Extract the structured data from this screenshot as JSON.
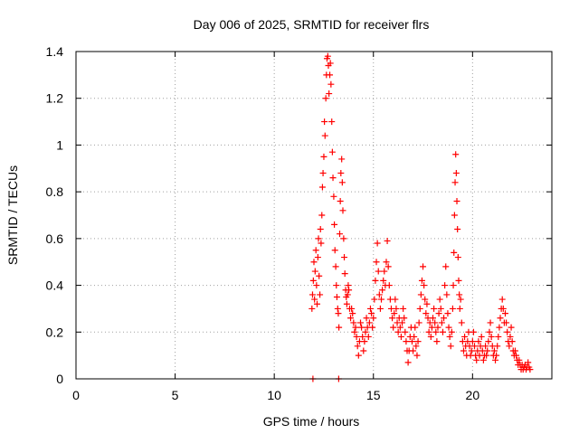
{
  "chart_data": {
    "type": "scatter",
    "title": "Day 006 of 2025, SRMTID for receiver flrs",
    "xlabel": "GPS time / hours",
    "ylabel": "SRMTID / TECUs",
    "xlim": [
      0,
      24
    ],
    "ylim": [
      0,
      1.4
    ],
    "xticks": [
      0,
      5,
      10,
      15,
      20
    ],
    "xtick_labels": [
      "0",
      "5",
      "10",
      "15",
      "20"
    ],
    "yticks": [
      0,
      0.2,
      0.4,
      0.6,
      0.8,
      1.0,
      1.2,
      1.4
    ],
    "ytick_labels": [
      "0",
      "0.2",
      "0.4",
      "0.6",
      "0.8",
      "1",
      "1.2",
      "1.4"
    ],
    "grid": true,
    "marker": "plus",
    "series": [
      {
        "name": "SRMTID",
        "color": "#ff0000",
        "points": [
          [
            11.95,
            0.0
          ],
          [
            13.25,
            0.0
          ],
          [
            11.9,
            0.3
          ],
          [
            11.93,
            0.36
          ],
          [
            11.97,
            0.42
          ],
          [
            12.0,
            0.5
          ],
          [
            12.03,
            0.34
          ],
          [
            12.06,
            0.46
          ],
          [
            12.1,
            0.55
          ],
          [
            12.13,
            0.4
          ],
          [
            12.16,
            0.32
          ],
          [
            12.2,
            0.52
          ],
          [
            12.23,
            0.6
          ],
          [
            12.26,
            0.44
          ],
          [
            12.3,
            0.36
          ],
          [
            12.33,
            0.64
          ],
          [
            12.36,
            0.58
          ],
          [
            12.4,
            0.7
          ],
          [
            12.43,
            0.82
          ],
          [
            12.46,
            0.88
          ],
          [
            12.5,
            0.95
          ],
          [
            12.53,
            1.1
          ],
          [
            12.56,
            1.04
          ],
          [
            12.6,
            1.2
          ],
          [
            12.63,
            1.3
          ],
          [
            12.66,
            1.37
          ],
          [
            12.7,
            1.38
          ],
          [
            12.73,
            1.34
          ],
          [
            12.76,
            1.22
          ],
          [
            12.8,
            1.3
          ],
          [
            12.83,
            1.35
          ],
          [
            12.86,
            1.26
          ],
          [
            12.9,
            1.1
          ],
          [
            12.93,
            0.97
          ],
          [
            12.96,
            0.86
          ],
          [
            13.0,
            0.78
          ],
          [
            13.03,
            0.66
          ],
          [
            13.06,
            0.55
          ],
          [
            13.1,
            0.48
          ],
          [
            13.13,
            0.4
          ],
          [
            13.16,
            0.35
          ],
          [
            13.2,
            0.3
          ],
          [
            13.23,
            0.28
          ],
          [
            13.26,
            0.22
          ],
          [
            13.3,
            0.62
          ],
          [
            13.33,
            0.76
          ],
          [
            13.36,
            0.88
          ],
          [
            13.4,
            0.94
          ],
          [
            13.43,
            0.84
          ],
          [
            13.46,
            0.72
          ],
          [
            13.5,
            0.6
          ],
          [
            13.53,
            0.52
          ],
          [
            13.56,
            0.45
          ],
          [
            13.6,
            0.38
          ],
          [
            13.63,
            0.35
          ],
          [
            13.66,
            0.32
          ],
          [
            13.7,
            0.36
          ],
          [
            13.73,
            0.4
          ],
          [
            13.76,
            0.38
          ],
          [
            13.8,
            0.3
          ],
          [
            13.85,
            0.26
          ],
          [
            13.9,
            0.3
          ],
          [
            13.95,
            0.28
          ],
          [
            14.0,
            0.24
          ],
          [
            14.05,
            0.2
          ],
          [
            14.1,
            0.22
          ],
          [
            14.15,
            0.18
          ],
          [
            14.2,
            0.14
          ],
          [
            14.25,
            0.1
          ],
          [
            14.3,
            0.16
          ],
          [
            14.35,
            0.24
          ],
          [
            14.4,
            0.22
          ],
          [
            14.45,
            0.18
          ],
          [
            14.5,
            0.12
          ],
          [
            14.55,
            0.16
          ],
          [
            14.6,
            0.2
          ],
          [
            14.65,
            0.26
          ],
          [
            14.7,
            0.22
          ],
          [
            14.75,
            0.18
          ],
          [
            14.8,
            0.24
          ],
          [
            14.85,
            0.3
          ],
          [
            14.9,
            0.28
          ],
          [
            14.95,
            0.22
          ],
          [
            15.0,
            0.26
          ],
          [
            15.05,
            0.34
          ],
          [
            15.1,
            0.42
          ],
          [
            15.15,
            0.5
          ],
          [
            15.2,
            0.58
          ],
          [
            15.25,
            0.46
          ],
          [
            15.3,
            0.36
          ],
          [
            15.35,
            0.3
          ],
          [
            15.4,
            0.34
          ],
          [
            15.45,
            0.38
          ],
          [
            15.5,
            0.42
          ],
          [
            15.55,
            0.46
          ],
          [
            15.6,
            0.4
          ],
          [
            15.65,
            0.5
          ],
          [
            15.7,
            0.59
          ],
          [
            15.75,
            0.48
          ],
          [
            15.8,
            0.4
          ],
          [
            15.85,
            0.34
          ],
          [
            15.9,
            0.3
          ],
          [
            15.95,
            0.26
          ],
          [
            16.0,
            0.22
          ],
          [
            16.05,
            0.28
          ],
          [
            16.1,
            0.34
          ],
          [
            16.15,
            0.3
          ],
          [
            16.2,
            0.24
          ],
          [
            16.25,
            0.2
          ],
          [
            16.3,
            0.26
          ],
          [
            16.35,
            0.22
          ],
          [
            16.4,
            0.18
          ],
          [
            16.45,
            0.24
          ],
          [
            16.5,
            0.3
          ],
          [
            16.55,
            0.26
          ],
          [
            16.6,
            0.2
          ],
          [
            16.65,
            0.16
          ],
          [
            16.7,
            0.12
          ],
          [
            16.75,
            0.07
          ],
          [
            16.8,
            0.12
          ],
          [
            16.85,
            0.18
          ],
          [
            16.9,
            0.22
          ],
          [
            16.95,
            0.16
          ],
          [
            17.0,
            0.12
          ],
          [
            17.05,
            0.18
          ],
          [
            17.1,
            0.22
          ],
          [
            17.15,
            0.14
          ],
          [
            17.2,
            0.1
          ],
          [
            17.25,
            0.16
          ],
          [
            17.3,
            0.24
          ],
          [
            17.35,
            0.3
          ],
          [
            17.4,
            0.36
          ],
          [
            17.45,
            0.42
          ],
          [
            17.5,
            0.48
          ],
          [
            17.55,
            0.4
          ],
          [
            17.6,
            0.34
          ],
          [
            17.65,
            0.28
          ],
          [
            17.7,
            0.32
          ],
          [
            17.75,
            0.26
          ],
          [
            17.8,
            0.2
          ],
          [
            17.85,
            0.24
          ],
          [
            17.9,
            0.18
          ],
          [
            17.95,
            0.22
          ],
          [
            18.0,
            0.26
          ],
          [
            18.05,
            0.3
          ],
          [
            18.1,
            0.24
          ],
          [
            18.15,
            0.2
          ],
          [
            18.2,
            0.16
          ],
          [
            18.25,
            0.22
          ],
          [
            18.3,
            0.28
          ],
          [
            18.35,
            0.34
          ],
          [
            18.4,
            0.3
          ],
          [
            18.45,
            0.24
          ],
          [
            18.5,
            0.2
          ],
          [
            18.55,
            0.26
          ],
          [
            18.6,
            0.4
          ],
          [
            18.65,
            0.48
          ],
          [
            18.7,
            0.36
          ],
          [
            18.75,
            0.28
          ],
          [
            18.8,
            0.22
          ],
          [
            18.85,
            0.18
          ],
          [
            18.9,
            0.14
          ],
          [
            18.95,
            0.2
          ],
          [
            19.0,
            0.3
          ],
          [
            19.03,
            0.4
          ],
          [
            19.06,
            0.54
          ],
          [
            19.09,
            0.7
          ],
          [
            19.12,
            0.84
          ],
          [
            19.15,
            0.96
          ],
          [
            19.18,
            0.88
          ],
          [
            19.21,
            0.76
          ],
          [
            19.24,
            0.64
          ],
          [
            19.27,
            0.52
          ],
          [
            19.3,
            0.42
          ],
          [
            19.33,
            0.36
          ],
          [
            19.36,
            0.3
          ],
          [
            19.4,
            0.34
          ],
          [
            19.45,
            0.24
          ],
          [
            19.5,
            0.16
          ],
          [
            19.55,
            0.12
          ],
          [
            19.6,
            0.18
          ],
          [
            19.65,
            0.14
          ],
          [
            19.7,
            0.1
          ],
          [
            19.75,
            0.16
          ],
          [
            19.8,
            0.2
          ],
          [
            19.85,
            0.14
          ],
          [
            19.9,
            0.1
          ],
          [
            19.95,
            0.12
          ],
          [
            20.0,
            0.16
          ],
          [
            20.05,
            0.2
          ],
          [
            20.1,
            0.14
          ],
          [
            20.15,
            0.1
          ],
          [
            20.2,
            0.08
          ],
          [
            20.25,
            0.12
          ],
          [
            20.3,
            0.16
          ],
          [
            20.35,
            0.1
          ],
          [
            20.4,
            0.14
          ],
          [
            20.45,
            0.18
          ],
          [
            20.5,
            0.12
          ],
          [
            20.55,
            0.08
          ],
          [
            20.6,
            0.1
          ],
          [
            20.65,
            0.14
          ],
          [
            20.7,
            0.1
          ],
          [
            20.75,
            0.12
          ],
          [
            20.8,
            0.16
          ],
          [
            20.85,
            0.2
          ],
          [
            20.9,
            0.24
          ],
          [
            20.95,
            0.18
          ],
          [
            21.0,
            0.14
          ],
          [
            21.05,
            0.1
          ],
          [
            21.1,
            0.12
          ],
          [
            21.15,
            0.08
          ],
          [
            21.2,
            0.1
          ],
          [
            21.25,
            0.14
          ],
          [
            21.3,
            0.18
          ],
          [
            21.35,
            0.22
          ],
          [
            21.4,
            0.26
          ],
          [
            21.45,
            0.3
          ],
          [
            21.5,
            0.34
          ],
          [
            21.55,
            0.3
          ],
          [
            21.6,
            0.24
          ],
          [
            21.65,
            0.28
          ],
          [
            21.7,
            0.24
          ],
          [
            21.75,
            0.2
          ],
          [
            21.8,
            0.16
          ],
          [
            21.85,
            0.14
          ],
          [
            21.9,
            0.18
          ],
          [
            21.95,
            0.22
          ],
          [
            22.0,
            0.16
          ],
          [
            22.05,
            0.12
          ],
          [
            22.1,
            0.1
          ],
          [
            22.15,
            0.12
          ],
          [
            22.2,
            0.1
          ],
          [
            22.25,
            0.08
          ],
          [
            22.3,
            0.06
          ],
          [
            22.35,
            0.08
          ],
          [
            22.4,
            0.06
          ],
          [
            22.45,
            0.04
          ],
          [
            22.5,
            0.06
          ],
          [
            22.55,
            0.04
          ],
          [
            22.6,
            0.05
          ],
          [
            22.65,
            0.06
          ],
          [
            22.7,
            0.04
          ],
          [
            22.75,
            0.05
          ],
          [
            22.8,
            0.07
          ],
          [
            22.85,
            0.05
          ],
          [
            22.9,
            0.04
          ]
        ]
      }
    ]
  }
}
